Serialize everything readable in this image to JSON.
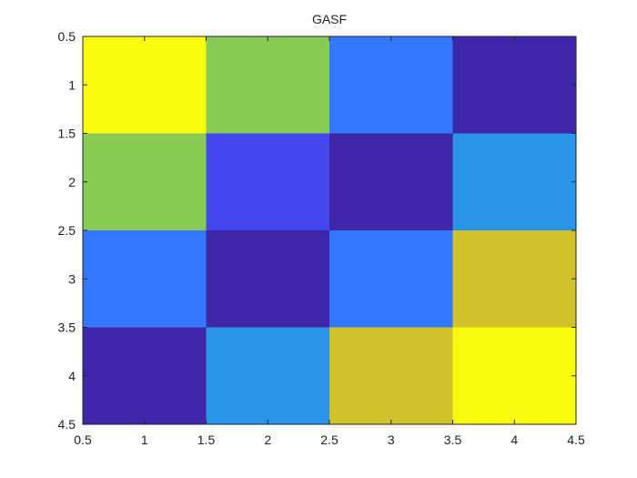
{
  "chart_data": {
    "type": "heatmap",
    "title": "GASF",
    "z": [
      [
        1,
        0.33,
        -0.33,
        -1
      ],
      [
        0.33,
        -0.67,
        -1,
        0
      ],
      [
        -0.33,
        -1,
        -0.33,
        0.67
      ],
      [
        -1,
        0,
        0.67,
        1
      ]
    ],
    "clim": [
      -1,
      1
    ],
    "colormap": [
      "#3e26a8",
      "#4646f0",
      "#3377ff",
      "#2a94e8",
      "#88cc55",
      "#cfc12a",
      "#f9fb0e"
    ],
    "xlim": [
      0.5,
      4.5
    ],
    "ylim": [
      0.5,
      4.5
    ],
    "xticks": [
      0.5,
      1,
      1.5,
      2,
      2.5,
      3,
      3.5,
      4,
      4.5
    ],
    "yticks": [
      0.5,
      1,
      1.5,
      2,
      2.5,
      3,
      3.5,
      4,
      4.5
    ],
    "y_reversed": true
  }
}
